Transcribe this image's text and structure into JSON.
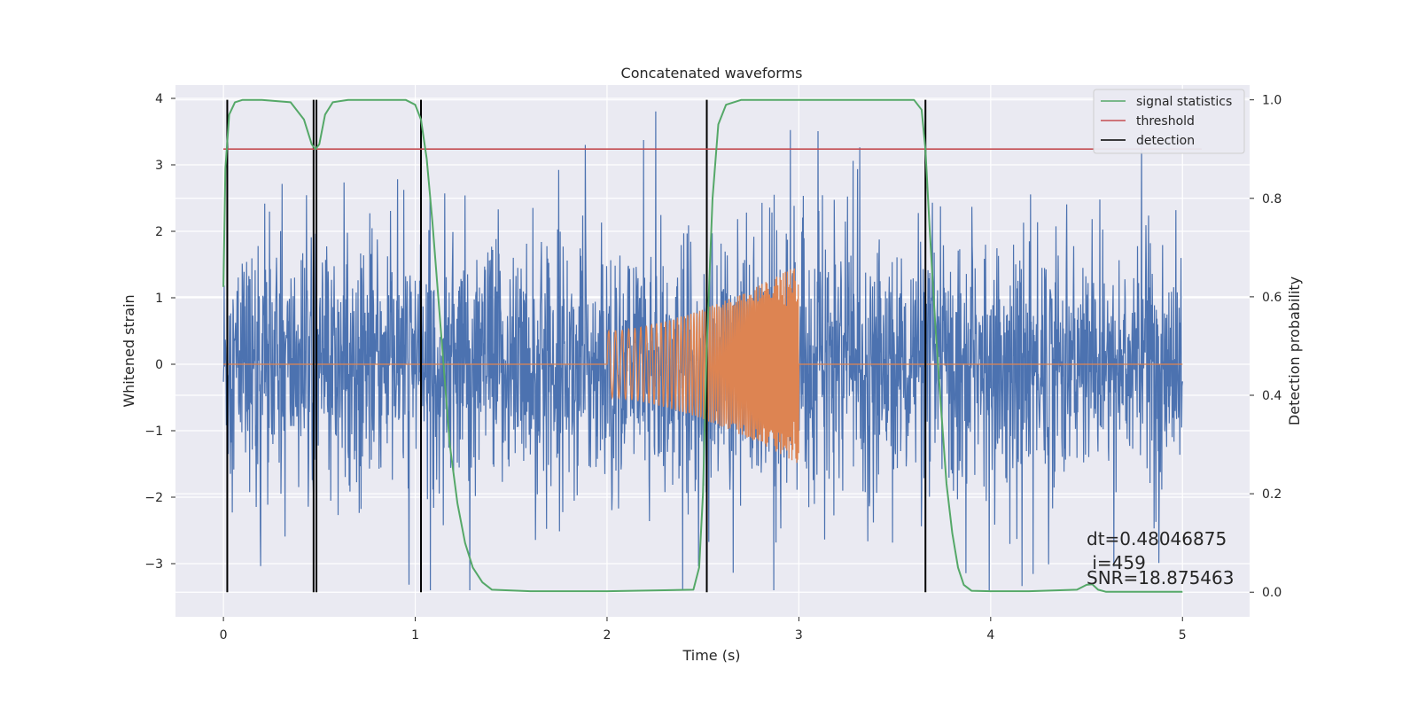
{
  "chart_data": {
    "type": "line",
    "title": "Concatenated waveforms",
    "xlabel": "Time (s)",
    "ylabel": "Whitened strain",
    "ylabel_right": "Detection probability",
    "xlim": [
      -0.25,
      5.35
    ],
    "ylim": [
      -3.8,
      4.2
    ],
    "ylim_right": [
      -0.05,
      1.03
    ],
    "x_ticks": [
      0,
      1,
      2,
      3,
      4,
      5
    ],
    "y_ticks": [
      -3,
      -2,
      -1,
      0,
      1,
      2,
      3,
      4
    ],
    "y_ticks_right": [
      0.0,
      0.2,
      0.4,
      0.6,
      0.8,
      1.0
    ],
    "x_tick_labels": [
      "0",
      "1",
      "2",
      "3",
      "4",
      "5"
    ],
    "y_tick_labels": [
      "−3",
      "−2",
      "−1",
      "0",
      "1",
      "2",
      "3",
      "4"
    ],
    "y_tick_labels_right": [
      "0.0",
      "0.2",
      "0.4",
      "0.6",
      "0.8",
      "1.0"
    ],
    "grid": true,
    "legend_position": "top-right",
    "colors": {
      "strain": "#4c72b0",
      "injection": "#dd8452",
      "signal_statistics": "#55a868",
      "threshold": "#c44e52",
      "detection": "#000000",
      "background": "#eaeaf2",
      "grid": "#ffffff"
    },
    "series": [
      {
        "name": "signal statistics",
        "axis": "right",
        "x": [
          0.0,
          0.01,
          0.03,
          0.06,
          0.1,
          0.2,
          0.35,
          0.42,
          0.46,
          0.48,
          0.5,
          0.53,
          0.57,
          0.65,
          0.8,
          0.95,
          1.0,
          1.03,
          1.06,
          1.09,
          1.12,
          1.15,
          1.18,
          1.22,
          1.26,
          1.3,
          1.35,
          1.4,
          1.6,
          2.0,
          2.3,
          2.45,
          2.48,
          2.5,
          2.52,
          2.55,
          2.58,
          2.62,
          2.7,
          3.0,
          3.4,
          3.6,
          3.64,
          3.66,
          3.68,
          3.71,
          3.74,
          3.77,
          3.8,
          3.83,
          3.86,
          3.9,
          4.0,
          4.2,
          4.45,
          4.5,
          4.53,
          4.56,
          4.6,
          5.0
        ],
        "values": [
          0.62,
          0.86,
          0.97,
          0.995,
          1.0,
          1.0,
          0.995,
          0.96,
          0.91,
          0.9,
          0.91,
          0.97,
          0.995,
          1.0,
          1.0,
          1.0,
          0.99,
          0.96,
          0.88,
          0.75,
          0.6,
          0.45,
          0.3,
          0.18,
          0.1,
          0.05,
          0.02,
          0.005,
          0.002,
          0.002,
          0.004,
          0.005,
          0.05,
          0.2,
          0.5,
          0.8,
          0.95,
          0.99,
          1.0,
          1.0,
          1.0,
          1.0,
          0.98,
          0.9,
          0.75,
          0.55,
          0.38,
          0.22,
          0.12,
          0.05,
          0.015,
          0.003,
          0.002,
          0.002,
          0.005,
          0.015,
          0.016,
          0.005,
          0.001,
          0.001
        ]
      },
      {
        "name": "threshold",
        "axis": "right",
        "x": [
          0.0,
          5.1
        ],
        "values": [
          0.9,
          0.9
        ]
      },
      {
        "name": "detection",
        "axis": "right",
        "type": "vlines",
        "x": [
          0.02,
          0.47,
          0.485,
          1.03,
          2.52,
          3.66
        ],
        "ymin": 0.0,
        "ymax": 1.0
      }
    ],
    "strain_series": {
      "axis": "left",
      "x_range": [
        0.0,
        5.0
      ],
      "envelope_low": -1.3,
      "envelope_high": 1.25,
      "peak_max": 3.85,
      "peak_min": -3.4
    },
    "injection_series": {
      "axis": "left",
      "x_range": [
        0.0,
        5.0
      ],
      "chirp_start": 2.0,
      "chirp_end": 3.0,
      "amplitude_start": 0.5,
      "amplitude_end": 1.5
    },
    "annotation": {
      "line1": "dt=0.48046875",
      "line2": " i=459",
      "line3": "SNR=18.875463"
    },
    "legend": [
      "signal statistics",
      "threshold",
      "detection"
    ]
  }
}
